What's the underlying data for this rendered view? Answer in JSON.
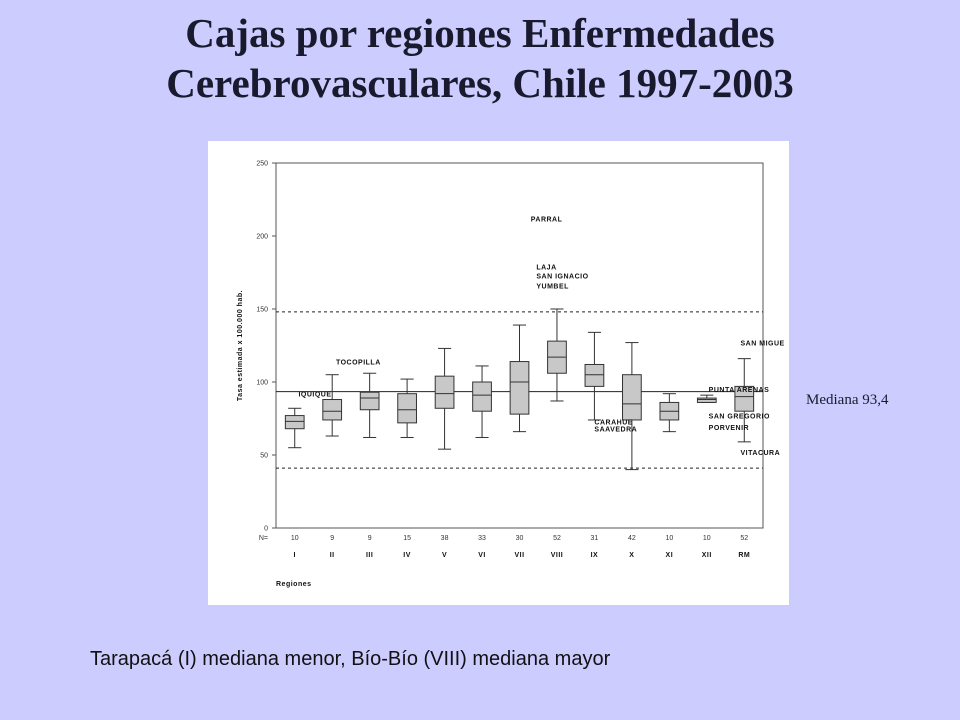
{
  "slide": {
    "title_line1": "Cajas por regiones Enfermedades",
    "title_line2": "Cerebrovasculares, Chile 1997-2003",
    "median_note": "Mediana 93,4",
    "caption": "Tarapacá (I) mediana menor, Bío-Bío (VIII) mediana mayor"
  },
  "chart_data": {
    "type": "box",
    "xlabel": "Regiones",
    "ylabel": "Tasa estimada x 100.000 hab.",
    "ylim": [
      0,
      250
    ],
    "yticks": [
      0,
      50,
      100,
      150,
      200,
      250
    ],
    "n_label": "N=",
    "overall_median": 93.4,
    "reference_lines": [
      148,
      41
    ],
    "categories": [
      "I",
      "II",
      "III",
      "IV",
      "V",
      "VI",
      "VII",
      "VIII",
      "IX",
      "X",
      "XI",
      "XII",
      "RM"
    ],
    "n": [
      "10",
      "9",
      "9",
      "15",
      "38",
      "33",
      "30",
      "52",
      "31",
      "42",
      "10",
      "10",
      "52"
    ],
    "boxes": [
      {
        "region": "I",
        "min": 55,
        "q1": 68,
        "median": 73,
        "q3": 77,
        "max": 82
      },
      {
        "region": "II",
        "min": 63,
        "q1": 74,
        "median": 80,
        "q3": 88,
        "max": 105
      },
      {
        "region": "III",
        "min": 62,
        "q1": 81,
        "median": 89,
        "q3": 93,
        "max": 106
      },
      {
        "region": "IV",
        "min": 62,
        "q1": 72,
        "median": 81,
        "q3": 92,
        "max": 102
      },
      {
        "region": "V",
        "min": 54,
        "q1": 82,
        "median": 92,
        "q3": 104,
        "max": 123
      },
      {
        "region": "VI",
        "min": 62,
        "q1": 80,
        "median": 91,
        "q3": 100,
        "max": 111
      },
      {
        "region": "VII",
        "min": 66,
        "q1": 78,
        "median": 100,
        "q3": 114,
        "max": 139
      },
      {
        "region": "VIII",
        "min": 87,
        "q1": 106,
        "median": 117,
        "q3": 128,
        "max": 150
      },
      {
        "region": "IX",
        "min": 74,
        "q1": 97,
        "median": 105,
        "q3": 112,
        "max": 134
      },
      {
        "region": "X",
        "min": 40,
        "q1": 74,
        "median": 85,
        "q3": 105,
        "max": 127
      },
      {
        "region": "XI",
        "min": 66,
        "q1": 74,
        "median": 80,
        "q3": 86,
        "max": 92
      },
      {
        "region": "XII",
        "min": 86,
        "q1": 86,
        "median": 88,
        "q3": 89,
        "max": 91
      },
      {
        "region": "RM",
        "min": 59,
        "q1": 80,
        "median": 90,
        "q3": 97,
        "max": 116
      }
    ],
    "annotations": [
      {
        "text": "PARRAL",
        "cat": 6.8,
        "value": 210
      },
      {
        "text": "LAJA",
        "cat": 6.95,
        "value": 177
      },
      {
        "text": "SAN IGNACIO",
        "cat": 6.95,
        "value": 171
      },
      {
        "text": "YUMBEL",
        "cat": 6.95,
        "value": 164
      },
      {
        "text": "TOCOPILLA",
        "cat": 1.6,
        "value": 112
      },
      {
        "text": "IQUIQUE",
        "cat": 0.6,
        "value": 90
      },
      {
        "text": "SAN MIGUE",
        "cat": 12.4,
        "value": 125
      },
      {
        "text": "PUNTA ARENAS",
        "cat": 11.55,
        "value": 93
      },
      {
        "text": "SAN GREGORIO",
        "cat": 11.55,
        "value": 75
      },
      {
        "text": "PORVENIR",
        "cat": 11.55,
        "value": 67
      },
      {
        "text": "CARAHUE",
        "cat": 8.5,
        "value": 71
      },
      {
        "text": "SAAVEDRA",
        "cat": 8.5,
        "value": 66
      },
      {
        "text": "VITACURA",
        "cat": 12.4,
        "value": 50
      }
    ],
    "colors": {
      "box_fill": "#c8c8c8",
      "stroke": "#333333"
    }
  }
}
